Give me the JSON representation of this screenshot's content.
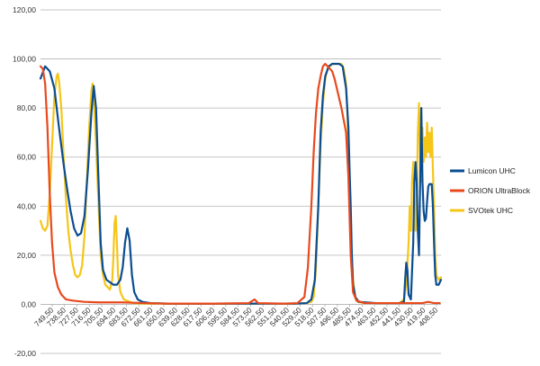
{
  "chart_data": {
    "type": "line",
    "ylim": [
      -20,
      120
    ],
    "y_ticks": [
      "120,00",
      "100,00",
      "80,00",
      "60,00",
      "40,00",
      "20,00",
      "0,00",
      "-20,00"
    ],
    "x_ticks": [
      "749,50",
      "738,50",
      "727,50",
      "716,50",
      "705,50",
      "694,50",
      "683,50",
      "672,50",
      "661,50",
      "650,50",
      "639,50",
      "628,50",
      "617,50",
      "606,50",
      "595,50",
      "584,50",
      "573,50",
      "562,50",
      "551,50",
      "540,50",
      "529,50",
      "518,50",
      "507,50",
      "496,50",
      "485,50",
      "474,50",
      "463,50",
      "452,50",
      "441,50",
      "430,50",
      "419,50",
      "408,50"
    ],
    "x_range": [
      750,
      404
    ],
    "grid": true,
    "legend_position": "right",
    "series": [
      {
        "name": "Lumicon UHC",
        "color": "#0b4d91",
        "points": [
          [
            750,
            92
          ],
          [
            746,
            97
          ],
          [
            742,
            95
          ],
          [
            738,
            88
          ],
          [
            734,
            72
          ],
          [
            730,
            57
          ],
          [
            727,
            47
          ],
          [
            724,
            38
          ],
          [
            721,
            31
          ],
          [
            718,
            28
          ],
          [
            715,
            29
          ],
          [
            712,
            36
          ],
          [
            709,
            55
          ],
          [
            706,
            78
          ],
          [
            704,
            89
          ],
          [
            702,
            80
          ],
          [
            700,
            52
          ],
          [
            698,
            25
          ],
          [
            696,
            14
          ],
          [
            693,
            10
          ],
          [
            690,
            9
          ],
          [
            687,
            8
          ],
          [
            684,
            8
          ],
          [
            681,
            10
          ],
          [
            679,
            15
          ],
          [
            677,
            25
          ],
          [
            675,
            31
          ],
          [
            673,
            26
          ],
          [
            671,
            12
          ],
          [
            669,
            5
          ],
          [
            666,
            2
          ],
          [
            662,
            1
          ],
          [
            655,
            0.5
          ],
          [
            640,
            0.3
          ],
          [
            600,
            0.3
          ],
          [
            560,
            0.3
          ],
          [
            530,
            0.3
          ],
          [
            520,
            0.5
          ],
          [
            516,
            2
          ],
          [
            513,
            10
          ],
          [
            510,
            40
          ],
          [
            508,
            70
          ],
          [
            506,
            85
          ],
          [
            504,
            93
          ],
          [
            501,
            97
          ],
          [
            498,
            98
          ],
          [
            495,
            98
          ],
          [
            492,
            98
          ],
          [
            489,
            97
          ],
          [
            486,
            88
          ],
          [
            484,
            72
          ],
          [
            483,
            55
          ],
          [
            482,
            40
          ],
          [
            481,
            20
          ],
          [
            480,
            8
          ],
          [
            478,
            3
          ],
          [
            475,
            1
          ],
          [
            460,
            0.5
          ],
          [
            440,
            0.5
          ],
          [
            436,
            1
          ],
          [
            435,
            10
          ],
          [
            434,
            17
          ],
          [
            433,
            14
          ],
          [
            432,
            4
          ],
          [
            430,
            2
          ],
          [
            428,
            25
          ],
          [
            427,
            50
          ],
          [
            426,
            58
          ],
          [
            425,
            50
          ],
          [
            424,
            30
          ],
          [
            423,
            20
          ],
          [
            421,
            80
          ],
          [
            420,
            50
          ],
          [
            419,
            38
          ],
          [
            418,
            34
          ],
          [
            417,
            35
          ],
          [
            416,
            42
          ],
          [
            415,
            48
          ],
          [
            414,
            49
          ],
          [
            412,
            49
          ],
          [
            411,
            40
          ],
          [
            410,
            25
          ],
          [
            409,
            12
          ],
          [
            408,
            8
          ],
          [
            406,
            8
          ],
          [
            404,
            10
          ]
        ]
      },
      {
        "name": "ORION UltraBlock",
        "color": "#e8491d",
        "points": [
          [
            750,
            97
          ],
          [
            748,
            96
          ],
          [
            746,
            90
          ],
          [
            744,
            72
          ],
          [
            742,
            45
          ],
          [
            740,
            25
          ],
          [
            738,
            13
          ],
          [
            735,
            7
          ],
          [
            732,
            4
          ],
          [
            728,
            2
          ],
          [
            722,
            1.5
          ],
          [
            712,
            1
          ],
          [
            700,
            0.8
          ],
          [
            680,
            0.8
          ],
          [
            660,
            0.5
          ],
          [
            640,
            0.3
          ],
          [
            600,
            0.3
          ],
          [
            570,
            0.5
          ],
          [
            565,
            2
          ],
          [
            562,
            0.5
          ],
          [
            540,
            0.3
          ],
          [
            528,
            0.5
          ],
          [
            522,
            3
          ],
          [
            519,
            15
          ],
          [
            516,
            40
          ],
          [
            514,
            62
          ],
          [
            512,
            78
          ],
          [
            510,
            88
          ],
          [
            508,
            93
          ],
          [
            506,
            97
          ],
          [
            504,
            98
          ],
          [
            502,
            97
          ],
          [
            500,
            96
          ],
          [
            498,
            95
          ],
          [
            496,
            92
          ],
          [
            494,
            88
          ],
          [
            492,
            84
          ],
          [
            490,
            80
          ],
          [
            488,
            75
          ],
          [
            486,
            70
          ],
          [
            484,
            52
          ],
          [
            482,
            20
          ],
          [
            480,
            5
          ],
          [
            477,
            1.5
          ],
          [
            470,
            0.5
          ],
          [
            450,
            0.5
          ],
          [
            440,
            0.5
          ],
          [
            430,
            0.5
          ],
          [
            420,
            0.5
          ],
          [
            415,
            1
          ],
          [
            410,
            0.5
          ],
          [
            405,
            0.5
          ]
        ]
      },
      {
        "name": "SVOtek UHC",
        "color": "#f5c518",
        "points": [
          [
            750,
            34
          ],
          [
            748,
            31
          ],
          [
            746,
            30
          ],
          [
            744,
            32
          ],
          [
            742,
            45
          ],
          [
            740,
            65
          ],
          [
            738,
            85
          ],
          [
            736,
            93
          ],
          [
            735,
            94
          ],
          [
            734,
            91
          ],
          [
            732,
            80
          ],
          [
            730,
            60
          ],
          [
            728,
            43
          ],
          [
            726,
            30
          ],
          [
            724,
            22
          ],
          [
            722,
            16
          ],
          [
            720,
            12
          ],
          [
            718,
            11
          ],
          [
            716,
            12
          ],
          [
            714,
            16
          ],
          [
            712,
            28
          ],
          [
            710,
            50
          ],
          [
            708,
            72
          ],
          [
            706,
            87
          ],
          [
            705,
            90
          ],
          [
            704,
            85
          ],
          [
            702,
            65
          ],
          [
            700,
            42
          ],
          [
            698,
            20
          ],
          [
            696,
            12
          ],
          [
            694,
            8
          ],
          [
            692,
            7
          ],
          [
            690,
            6
          ],
          [
            688,
            10
          ],
          [
            687,
            20
          ],
          [
            686,
            33
          ],
          [
            685,
            36
          ],
          [
            684,
            25
          ],
          [
            683,
            12
          ],
          [
            681,
            5
          ],
          [
            678,
            2
          ],
          [
            670,
            0.5
          ],
          [
            660,
            0.3
          ],
          [
            640,
            0.3
          ],
          [
            600,
            0.3
          ],
          [
            560,
            0.3
          ],
          [
            530,
            0.3
          ],
          [
            520,
            0.5
          ],
          [
            516,
            1
          ],
          [
            514,
            3
          ],
          [
            512,
            15
          ],
          [
            510,
            40
          ],
          [
            508,
            65
          ],
          [
            506,
            82
          ],
          [
            504,
            92
          ],
          [
            502,
            96
          ],
          [
            500,
            97
          ],
          [
            498,
            98
          ],
          [
            496,
            98
          ],
          [
            494,
            98
          ],
          [
            492,
            98
          ],
          [
            490,
            98
          ],
          [
            488,
            96
          ],
          [
            486,
            90
          ],
          [
            485,
            80
          ],
          [
            484,
            60
          ],
          [
            482,
            30
          ],
          [
            480,
            10
          ],
          [
            478,
            3
          ],
          [
            476,
            1
          ],
          [
            470,
            0.5
          ],
          [
            450,
            0.5
          ],
          [
            440,
            0.5
          ],
          [
            436,
            2
          ],
          [
            434,
            8
          ],
          [
            432,
            25
          ],
          [
            431,
            40
          ],
          [
            430,
            30
          ],
          [
            429,
            50
          ],
          [
            428,
            58
          ],
          [
            427,
            45
          ],
          [
            426,
            30
          ],
          [
            425,
            40
          ],
          [
            424,
            70
          ],
          [
            423,
            82
          ],
          [
            422,
            62
          ],
          [
            421,
            50
          ],
          [
            420,
            72
          ],
          [
            419,
            58
          ],
          [
            418,
            68
          ],
          [
            417,
            60
          ],
          [
            416,
            74
          ],
          [
            415,
            62
          ],
          [
            414,
            70
          ],
          [
            413,
            60
          ],
          [
            412,
            72
          ],
          [
            411,
            55
          ],
          [
            410,
            40
          ],
          [
            409,
            20
          ],
          [
            408,
            12
          ],
          [
            406,
            10
          ],
          [
            404,
            11
          ]
        ]
      }
    ]
  }
}
